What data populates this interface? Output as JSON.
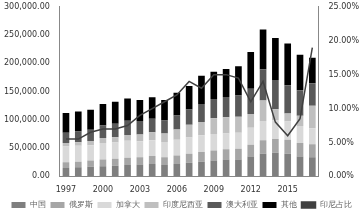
{
  "chart_data": {
    "type": "bar",
    "stacked": true,
    "grid": false,
    "legend": "bottom",
    "categories": [
      "1997",
      null,
      null,
      "2000",
      null,
      null,
      "2003",
      null,
      null,
      "2006",
      null,
      null,
      "2009",
      null,
      null,
      "2012",
      null,
      null,
      "2015",
      null,
      null
    ],
    "ylim": [
      0,
      300000
    ],
    "yticks": [
      {
        "value": 0,
        "label": "0.00"
      },
      {
        "value": 50000,
        "label": "50,000.00"
      },
      {
        "value": 100000,
        "label": "100,000.00"
      },
      {
        "value": 150000,
        "label": "150,000.00"
      },
      {
        "value": 200000,
        "label": "200,000.00"
      },
      {
        "value": 250000,
        "label": "250,000.00"
      },
      {
        "value": 300000,
        "label": "300,000.00"
      }
    ],
    "y2lim": [
      0,
      25
    ],
    "y2ticks": [
      {
        "value": 0,
        "label": "0.00%"
      },
      {
        "value": 5,
        "label": "5.00%"
      },
      {
        "value": 10,
        "label": "10.00%"
      },
      {
        "value": 15,
        "label": "15.00%"
      },
      {
        "value": 20,
        "label": "20.00%"
      },
      {
        "value": 25,
        "label": "25.00%"
      }
    ],
    "series": [
      {
        "name": "中国",
        "color": "#7f7f7f",
        "values": [
          15000,
          16000,
          17000,
          18000,
          19000,
          20000,
          21000,
          22000,
          20000,
          22000,
          24000,
          26000,
          28000,
          30000,
          30000,
          35000,
          40000,
          42000,
          40000,
          35000,
          34000
        ]
      },
      {
        "name": "俄罗斯",
        "color": "#a6a6a6",
        "values": [
          10000,
          10000,
          11000,
          12000,
          12000,
          13000,
          13000,
          14000,
          14000,
          15000,
          16000,
          17000,
          18000,
          18000,
          19000,
          21000,
          24000,
          24000,
          25000,
          24000,
          23000
        ]
      },
      {
        "name": "加拿大",
        "color": "#d9d9d9",
        "values": [
          28000,
          28000,
          27000,
          29000,
          29000,
          30000,
          28000,
          28000,
          27000,
          28000,
          29000,
          30000,
          29000,
          28000,
          28000,
          30000,
          34000,
          33000,
          32000,
          30000,
          28000
        ]
      },
      {
        "name": "印度尼西亚",
        "color": "#bfbfbf",
        "values": [
          6200,
          6300,
          7700,
          9000,
          9200,
          10400,
          12200,
          14000,
          14900,
          17800,
          22400,
          23100,
          27800,
          28500,
          28300,
          24200,
          36400,
          19600,
          14100,
          18300,
          39900
        ]
      },
      {
        "name": "澳大利亚",
        "color": "#595959",
        "values": [
          18000,
          19000,
          20000,
          22000,
          24000,
          25000,
          24000,
          24000,
          23000,
          25000,
          27000,
          32000,
          34000,
          36000,
          38000,
          45000,
          55000,
          52000,
          50000,
          45000,
          40000
        ]
      },
      {
        "name": "其他",
        "color": "#000000",
        "values": [
          34800,
          35700,
          35300,
          38000,
          38800,
          39600,
          36800,
          38000,
          36100,
          40200,
          41600,
          49900,
          48200,
          49500,
          51700,
          64800,
          70600,
          74400,
          73900,
          62700,
          45100
        ]
      },
      {
        "name": "印尼占比",
        "type": "line",
        "axis": "y2",
        "color": "#404040",
        "values": [
          5.5,
          5.5,
          6.5,
          7,
          7,
          7.5,
          9,
          10,
          11,
          12,
          14,
          13,
          15,
          15,
          14.5,
          11,
          14,
          8,
          6,
          8.5,
          19
        ]
      }
    ]
  }
}
